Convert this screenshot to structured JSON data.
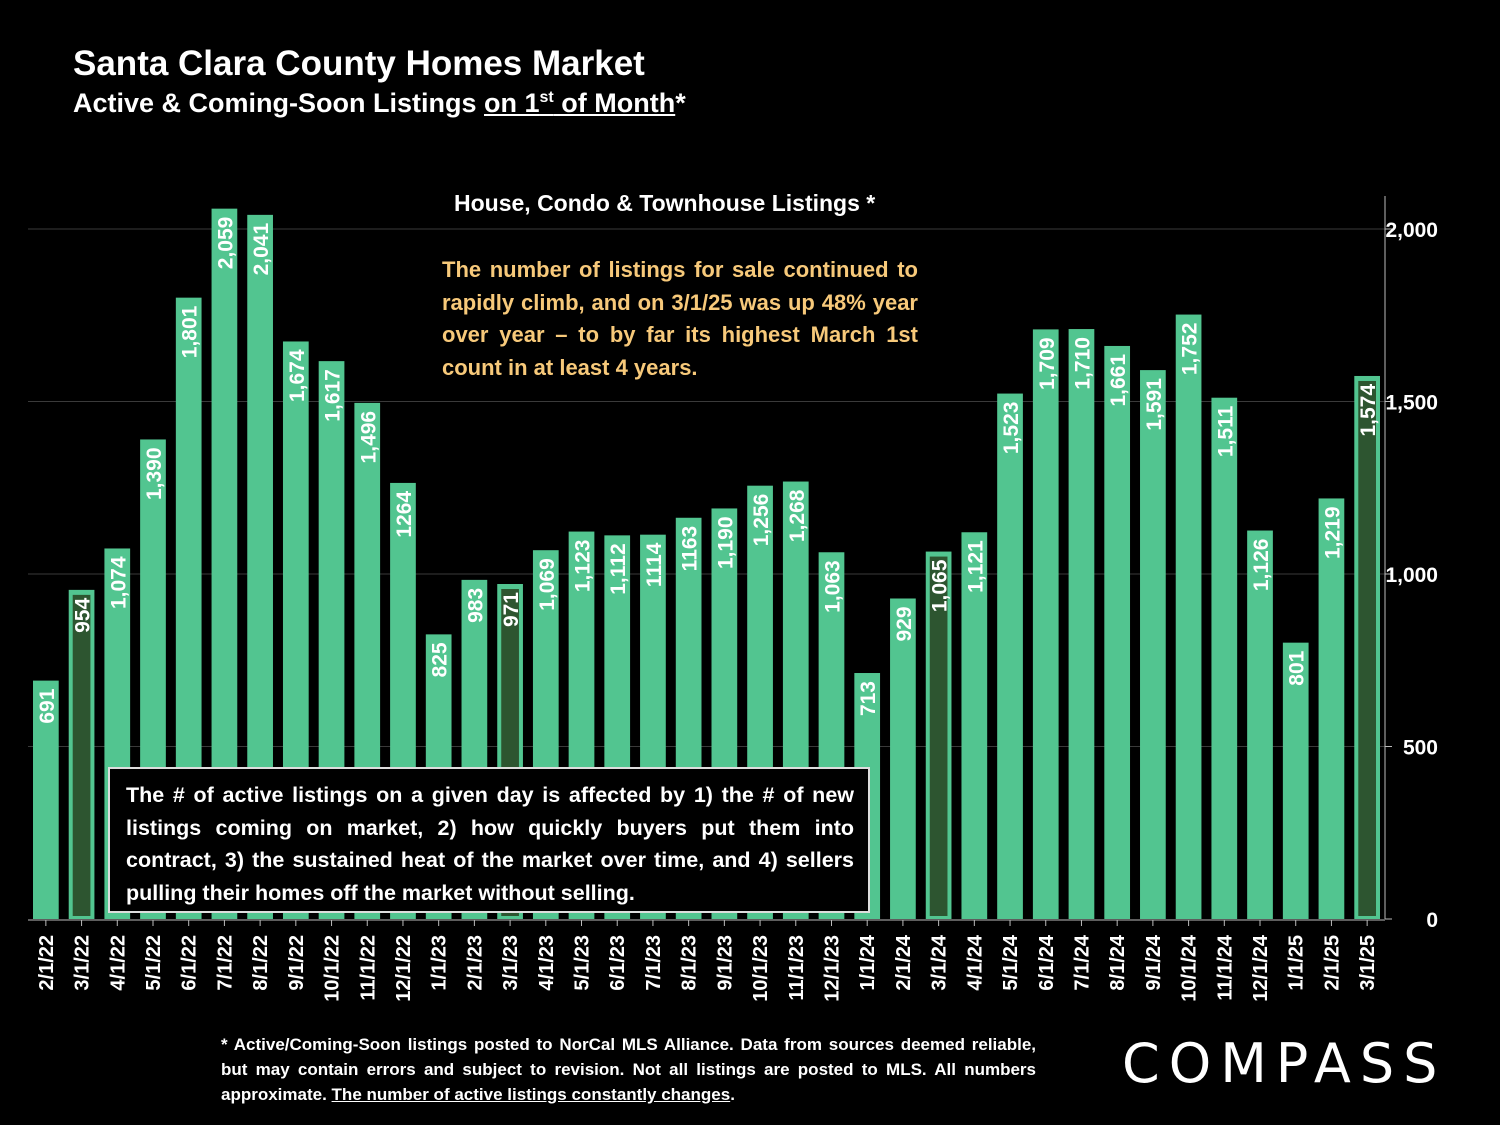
{
  "header": {
    "title": "Santa Clara County Homes Market",
    "subtitle_prefix": "Active & Coming-Soon Listings ",
    "subtitle_underlined_a": "on 1",
    "subtitle_sup": "st",
    "subtitle_underlined_b": " of Month",
    "subtitle_suffix": "*"
  },
  "annotation": "The number of listings for sale continued to rapidly climb, and on 3/1/25 was up 48% year over year – to by far its highest March 1st count in at least 4 years.",
  "note_box": "The # of active listings on a given day is affected by 1) the # of new listings coming on market, 2) how quickly buyers put them into contract, 3) the sustained heat of the market over time, and 4) sellers pulling their homes off the market without selling.",
  "footnote": {
    "text": "* Active/Coming-Soon listings posted to NorCal MLS Alliance.  Data from sources deemed reliable, but may contain errors and subject to revision.  Not all listings are posted to MLS. All numbers approximate. ",
    "underlined": "The number of active listings constantly changes",
    "end": "."
  },
  "logo": "COMPASS",
  "colors": {
    "bar": "#52c590",
    "bar_highlight": "#2d5530",
    "annotation_text": "#f7c97a",
    "background": "#000000"
  },
  "chart_data": {
    "type": "bar",
    "title": "House, Condo & Townhouse Listings *",
    "categories": [
      "2/1/22",
      "3/1/22",
      "4/1/22",
      "5/1/22",
      "6/1/22",
      "7/1/22",
      "8/1/22",
      "9/1/22",
      "10/1/22",
      "11/1/22",
      "12/1/22",
      "1/1/23",
      "2/1/23",
      "3/1/23",
      "4/1/23",
      "5/1/23",
      "6/1/23",
      "7/1/23",
      "8/1/23",
      "9/1/23",
      "10/1/23",
      "11/1/23",
      "12/1/23",
      "1/1/24",
      "2/1/24",
      "3/1/24",
      "4/1/24",
      "5/1/24",
      "6/1/24",
      "7/1/24",
      "8/1/24",
      "9/1/24",
      "10/1/24",
      "11/1/24",
      "12/1/24",
      "1/1/25",
      "2/1/25",
      "3/1/25"
    ],
    "values": [
      691,
      954,
      1074,
      1390,
      1801,
      2059,
      2041,
      1674,
      1617,
      1496,
      1264,
      825,
      983,
      971,
      1069,
      1123,
      1112,
      1114,
      1163,
      1190,
      1256,
      1268,
      1063,
      713,
      929,
      1065,
      1121,
      1523,
      1709,
      1710,
      1661,
      1591,
      1752,
      1511,
      1126,
      801,
      1219,
      1574
    ],
    "labels": [
      "691",
      "954",
      "1,074",
      "1,390",
      "1,801",
      "2,059",
      "2,041",
      "1,674",
      "1,617",
      "1,496",
      "1264",
      "825",
      "983",
      "971",
      "1,069",
      "1,123",
      "1,112",
      "1114",
      "1163",
      "1,190",
      "1,256",
      "1,268",
      "1,063",
      "713",
      "929",
      "1,065",
      "1,121",
      "1,523",
      "1,709",
      "1,710",
      "1,661",
      "1,591",
      "1,752",
      "1,511",
      "1,126",
      "801",
      "1,219",
      "1,574"
    ],
    "highlighted": [
      "3/1/22",
      "3/1/23",
      "3/1/24",
      "3/1/25"
    ],
    "ylim": [
      0,
      2000
    ],
    "yticks": [
      0,
      500,
      1000,
      1500,
      2000
    ],
    "ytick_labels": [
      "0",
      "500",
      "1,000",
      "1,500",
      "2,000"
    ],
    "y_axis_side": "right",
    "grid": true
  }
}
